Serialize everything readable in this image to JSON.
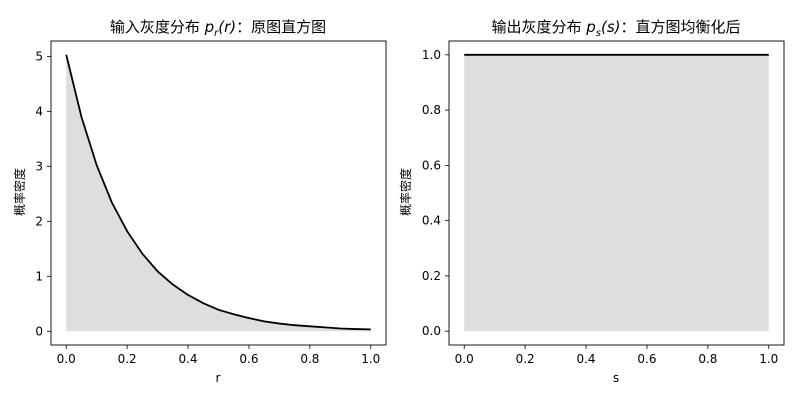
{
  "chart_data": [
    {
      "type": "area",
      "title": "输入灰度分布 pr(r)：原图直方图",
      "title_plain": "输入灰度分布 ",
      "title_math": "p",
      "title_sub": "r",
      "title_arg": "(r)",
      "title_tail": "：原图直方图",
      "xlabel": "r",
      "ylabel": "概率密度",
      "xlim": [
        -0.05,
        1.05
      ],
      "ylim": [
        -0.25,
        5.28
      ],
      "xticks": [
        0.0,
        0.2,
        0.4,
        0.6,
        0.8,
        1.0
      ],
      "xtick_labels": [
        "0.0",
        "0.2",
        "0.4",
        "0.6",
        "0.8",
        "1.0"
      ],
      "yticks": [
        0,
        1,
        2,
        3,
        4,
        5
      ],
      "ytick_labels": [
        "0",
        "1",
        "2",
        "3",
        "4",
        "5"
      ],
      "grid": false,
      "x": [
        0.0,
        0.05,
        0.1,
        0.15,
        0.2,
        0.25,
        0.3,
        0.35,
        0.4,
        0.45,
        0.5,
        0.55,
        0.6,
        0.65,
        0.7,
        0.75,
        0.8,
        0.85,
        0.9,
        0.95,
        1.0
      ],
      "y": [
        5.03,
        3.9,
        3.02,
        2.34,
        1.82,
        1.41,
        1.09,
        0.85,
        0.66,
        0.51,
        0.39,
        0.31,
        0.24,
        0.18,
        0.14,
        0.11,
        0.09,
        0.07,
        0.05,
        0.04,
        0.034
      ],
      "line_color": "#000000",
      "fill_color": "#dedede"
    },
    {
      "type": "area",
      "title": "输出灰度分布 ps(s)：直方图均衡化后",
      "title_plain": "输出灰度分布 ",
      "title_math": "p",
      "title_sub": "s",
      "title_arg": "(s)",
      "title_tail": "：直方图均衡化后",
      "xlabel": "s",
      "ylabel": "概率密度",
      "xlim": [
        -0.05,
        1.05
      ],
      "ylim": [
        -0.05,
        1.05
      ],
      "xticks": [
        0.0,
        0.2,
        0.4,
        0.6,
        0.8,
        1.0
      ],
      "xtick_labels": [
        "0.0",
        "0.2",
        "0.4",
        "0.6",
        "0.8",
        "1.0"
      ],
      "yticks": [
        0.0,
        0.2,
        0.4,
        0.6,
        0.8,
        1.0
      ],
      "ytick_labels": [
        "0.0",
        "0.2",
        "0.4",
        "0.6",
        "0.8",
        "1.0"
      ],
      "grid": false,
      "x": [
        0.0,
        1.0
      ],
      "y": [
        1.0,
        1.0
      ],
      "line_color": "#000000",
      "fill_color": "#dedede"
    }
  ]
}
